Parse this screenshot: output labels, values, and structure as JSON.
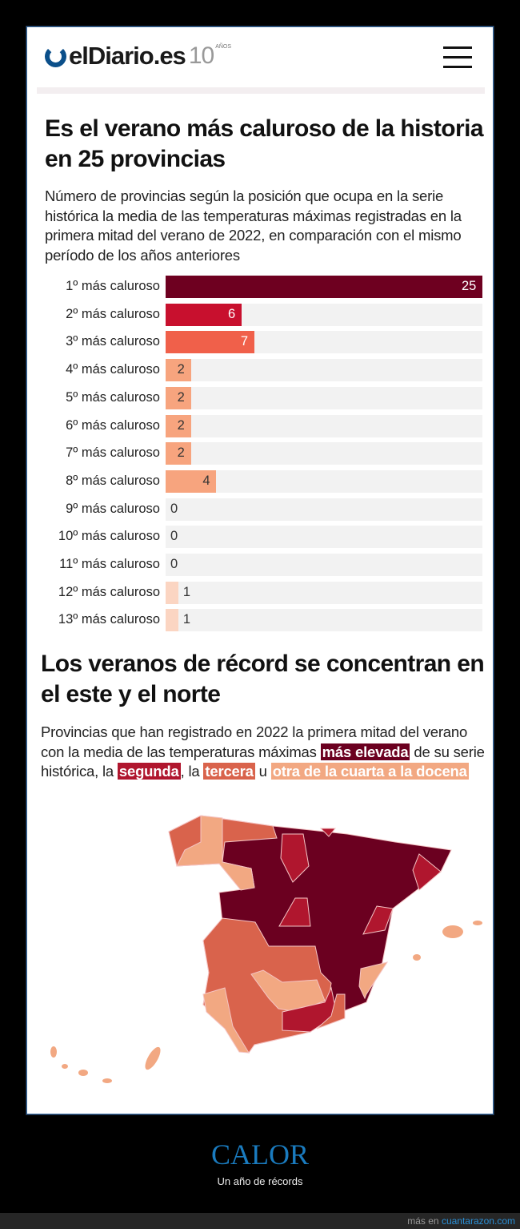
{
  "header": {
    "logo": "elDiario.es",
    "logo_badge_number": "10",
    "logo_badge_text": "AÑOS",
    "menu_icon": "hamburger-icon"
  },
  "chart_title": "Es el verano más caluroso de la historia en 25 provincias",
  "chart_subtitle": "Número de provincias según la posición que ocupa en la serie histórica la media de las temperaturas máximas registradas en la primera mitad del verano de 2022, en comparación con el mismo período de los años anteriores",
  "chart_data": {
    "type": "bar",
    "orientation": "horizontal",
    "categories": [
      "1º más caluroso",
      "2º más caluroso",
      "3º más caluroso",
      "4º más caluroso",
      "5º más caluroso",
      "6º más caluroso",
      "7º más caluroso",
      "8º más caluroso",
      "9º más caluroso",
      "10º más caluroso",
      "11º más caluroso",
      "12º más caluroso",
      "13º más caluroso"
    ],
    "values": [
      25,
      6,
      7,
      2,
      2,
      2,
      2,
      4,
      0,
      0,
      0,
      1,
      1
    ],
    "xlim": [
      0,
      25
    ],
    "colors": [
      "#6e0020",
      "#c8102e",
      "#f0604a",
      "#f7a47e",
      "#f7a47e",
      "#f7a47e",
      "#f7a47e",
      "#f7a47e",
      "#f7a47e",
      "#f7a47e",
      "#f7a47e",
      "#fbd5c2",
      "#fbd5c2"
    ]
  },
  "map": {
    "title": "Los veranos de récord se concentran en el este y el norte",
    "text_parts": [
      "Provincias que han registrado en 2022 la primera mitad del verano con la media de las temperaturas máximas ",
      "más elevada",
      " de su serie histórica, la ",
      "segunda",
      ", la ",
      "tercera",
      " u ",
      "otra de la cuarta a la docena"
    ],
    "colors": {
      "first": "#6b0020",
      "second": "#b0162e",
      "third": "#d9634c",
      "other": "#f2a882"
    }
  },
  "footer": {
    "title": "CALOR",
    "tagline": "Un año de récords",
    "more": "más en",
    "site": "cuantarazon.com"
  }
}
